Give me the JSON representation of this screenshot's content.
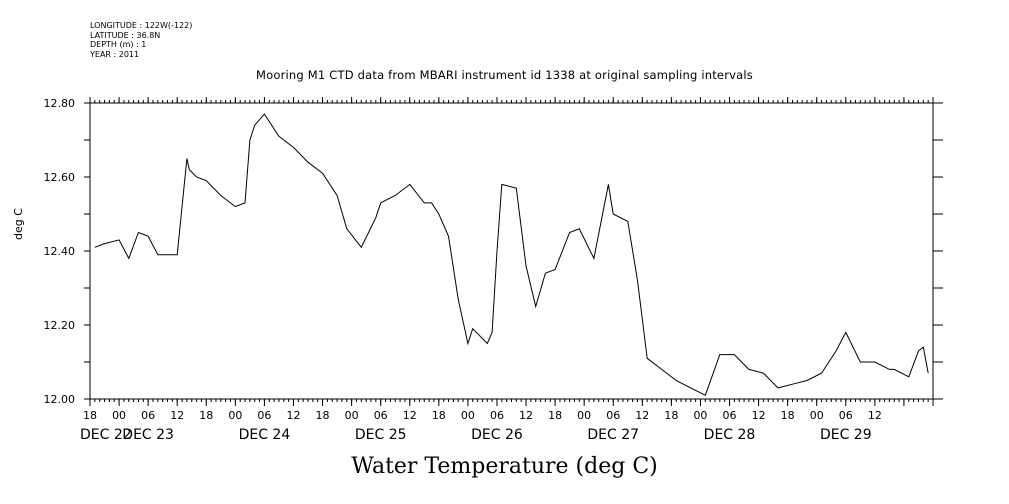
{
  "meta_lines": [
    "LONGITUDE : 122W(-122)",
    "LATITUDE : 36.8N",
    "DEPTH (m) : 1",
    "YEAR : 2011"
  ],
  "caption": "Water Temperature (deg C)",
  "chart_data": {
    "type": "line",
    "title": "Mooring M1 CTD data from MBARI instrument id 1338 at original sampling intervals",
    "xlabel": "",
    "ylabel": "deg C",
    "ylim": [
      12.0,
      12.8
    ],
    "yticks": [
      "12.00",
      "12.20",
      "12.40",
      "12.60",
      "12.80"
    ],
    "xlim": [
      "2011-12-22 12:00",
      "2011-12-29 18:00"
    ],
    "hour_tick_labels": [
      "18",
      "00",
      "06",
      "12",
      "18",
      "00",
      "06",
      "12",
      "18",
      "00",
      "06",
      "12",
      "18",
      "00",
      "06",
      "12",
      "18",
      "00",
      "06",
      "12",
      "18",
      "00",
      "06",
      "12",
      "18",
      "00",
      "06",
      "12"
    ],
    "day_labels": [
      "DEC 22",
      "DEC 23",
      "DEC 24",
      "DEC 25",
      "DEC 26",
      "DEC 27",
      "DEC 28",
      "DEC 29"
    ],
    "grid": false,
    "series": [
      {
        "color": "#000000",
        "x": [
          "2011-12-22 13:00",
          "2011-12-22 15:00",
          "2011-12-22 18:00",
          "2011-12-22 20:00",
          "2011-12-22 22:00",
          "2011-12-23 00:00",
          "2011-12-23 02:00",
          "2011-12-23 04:00",
          "2011-12-23 06:00",
          "2011-12-23 08:00",
          "2011-12-23 08:30",
          "2011-12-23 10:00",
          "2011-12-23 12:00",
          "2011-12-23 15:00",
          "2011-12-23 18:00",
          "2011-12-23 20:00",
          "2011-12-23 21:00",
          "2011-12-23 22:00",
          "2011-12-24 00:00",
          "2011-12-24 03:00",
          "2011-12-24 06:00",
          "2011-12-24 09:00",
          "2011-12-24 12:00",
          "2011-12-24 15:00",
          "2011-12-24 17:00",
          "2011-12-24 20:00",
          "2011-12-24 23:00",
          "2011-12-25 00:00",
          "2011-12-25 03:00",
          "2011-12-25 06:00",
          "2011-12-25 09:00",
          "2011-12-25 10:30",
          "2011-12-25 12:00",
          "2011-12-25 14:00",
          "2011-12-25 16:00",
          "2011-12-25 18:00",
          "2011-12-25 19:00",
          "2011-12-25 22:00",
          "2011-12-25 23:00",
          "2011-12-26 00:00",
          "2011-12-26 01:00",
          "2011-12-26 04:00",
          "2011-12-26 06:00",
          "2011-12-26 08:00",
          "2011-12-26 10:00",
          "2011-12-26 12:00",
          "2011-12-26 15:00",
          "2011-12-26 17:00",
          "2011-12-26 20:00",
          "2011-12-26 23:00",
          "2011-12-27 00:00",
          "2011-12-27 03:00",
          "2011-12-27 05:00",
          "2011-12-27 07:00",
          "2011-12-27 10:00",
          "2011-12-27 13:00",
          "2011-12-27 16:00",
          "2011-12-27 19:00",
          "2011-12-27 22:00",
          "2011-12-28 01:00",
          "2011-12-28 04:00",
          "2011-12-28 07:00",
          "2011-12-28 10:00",
          "2011-12-28 13:00",
          "2011-12-28 16:00",
          "2011-12-28 19:00",
          "2011-12-28 22:00",
          "2011-12-29 00:00",
          "2011-12-29 03:00",
          "2011-12-29 06:00",
          "2011-12-29 09:00",
          "2011-12-29 10:00",
          "2011-12-29 13:00",
          "2011-12-29 15:00",
          "2011-12-29 16:00",
          "2011-12-29 17:00"
        ],
        "values": [
          12.41,
          12.42,
          12.43,
          12.38,
          12.45,
          12.44,
          12.39,
          12.39,
          12.39,
          12.65,
          12.62,
          12.6,
          12.59,
          12.55,
          12.52,
          12.53,
          12.7,
          12.74,
          12.77,
          12.71,
          12.68,
          12.64,
          12.61,
          12.55,
          12.46,
          12.41,
          12.49,
          12.53,
          12.55,
          12.58,
          12.53,
          12.53,
          12.5,
          12.44,
          12.27,
          12.15,
          12.19,
          12.15,
          12.18,
          12.4,
          12.58,
          12.57,
          12.36,
          12.25,
          12.34,
          12.35,
          12.45,
          12.46,
          12.38,
          12.58,
          12.5,
          12.48,
          12.32,
          12.11,
          12.08,
          12.05,
          12.03,
          12.01,
          12.12,
          12.12,
          12.08,
          12.07,
          12.03,
          12.04,
          12.05,
          12.07,
          12.13,
          12.18,
          12.1,
          12.1,
          12.08,
          12.08,
          12.06,
          12.13,
          12.14,
          12.07
        ]
      }
    ]
  }
}
